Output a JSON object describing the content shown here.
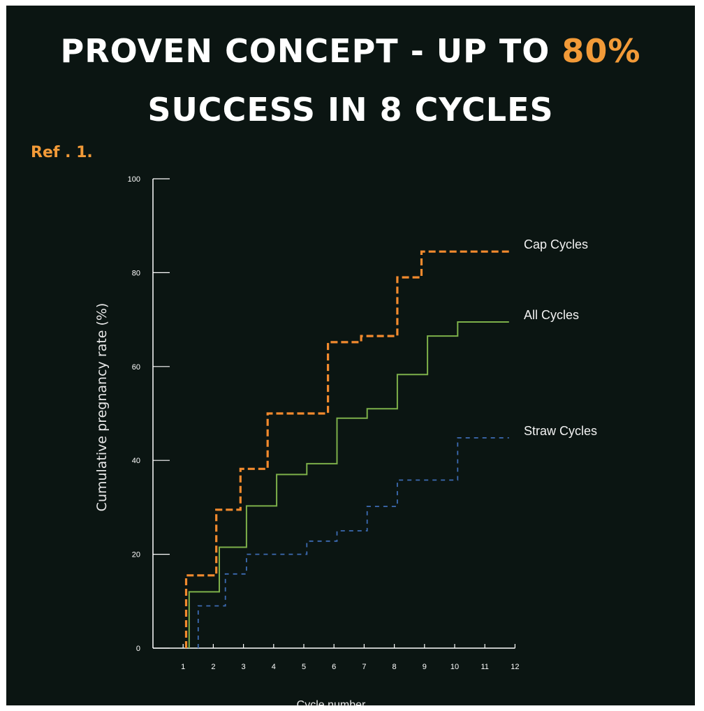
{
  "slide": {
    "title_line1_prefix": "PROVEN CONCEPT - UP TO ",
    "title_line1_accent": "80%",
    "title_line2": "SUCCESS IN 8 CYCLES",
    "ref": "Ref . 1.",
    "accent_color": "#f29a38",
    "background_color": "#0b1512"
  },
  "chart_data": {
    "type": "line",
    "step": true,
    "xlabel": "Cycle number",
    "ylabel": "Cumulative pregnancy rate (%)",
    "xlim": [
      0,
      12
    ],
    "ylim": [
      0,
      100
    ],
    "xticks": [
      "1",
      "2",
      "3",
      "4",
      "5",
      "6",
      "7",
      "8",
      "9",
      "10",
      "11",
      "12"
    ],
    "yticks": [
      "0",
      "20",
      "40",
      "60",
      "80",
      "100"
    ],
    "grid": false,
    "legend": "inline-right",
    "series": [
      {
        "name": "Cap Cycles",
        "color": "#f28a2e",
        "dash": "long",
        "x": [
          1.1,
          1.1,
          2.1,
          2.1,
          2.9,
          2.9,
          3.8,
          3.8,
          5.8,
          5.8,
          6.9,
          6.9,
          8.1,
          8.1,
          8.9,
          8.9,
          11.8
        ],
        "y": [
          0,
          15.5,
          15.5,
          29.5,
          29.5,
          38.2,
          38.2,
          50,
          50,
          65.2,
          65.2,
          66.5,
          66.5,
          79,
          79,
          84.5,
          84.5
        ]
      },
      {
        "name": "All Cycles",
        "color": "#7db04a",
        "dash": "solid",
        "x": [
          1.2,
          1.2,
          2.2,
          2.2,
          3.1,
          3.1,
          4.1,
          4.1,
          5.1,
          5.1,
          6.1,
          6.1,
          7.1,
          7.1,
          8.1,
          8.1,
          9.1,
          9.1,
          10.1,
          10.1,
          11.8
        ],
        "y": [
          0,
          12,
          12,
          21.5,
          21.5,
          30.3,
          30.3,
          37,
          37,
          39.3,
          39.3,
          49,
          49,
          51,
          51,
          58.3,
          58.3,
          66.5,
          66.5,
          69.5,
          69.5
        ]
      },
      {
        "name": "Straw Cycles",
        "color": "#3d6bb3",
        "dash": "short",
        "x": [
          1.5,
          1.5,
          2.4,
          2.4,
          3.1,
          3.1,
          5.1,
          5.1,
          6.1,
          6.1,
          7.1,
          7.1,
          8.1,
          8.1,
          10.1,
          10.1,
          11.8
        ],
        "y": [
          0,
          9,
          9,
          15.8,
          15.8,
          20,
          20,
          22.8,
          22.8,
          25,
          25,
          30.2,
          30.2,
          35.8,
          35.8,
          44.8,
          44.8
        ]
      }
    ]
  }
}
